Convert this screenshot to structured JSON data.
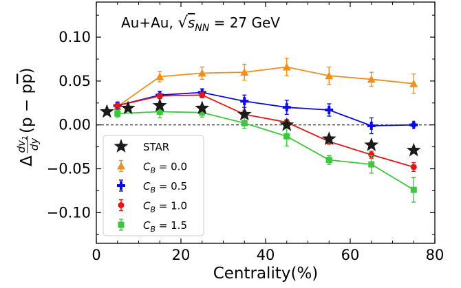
{
  "chart_data": {
    "type": "line",
    "annotation": "Au+Au, √s_NN = 27 GeV",
    "annotation_parts": {
      "prefix": "Au+Au, ",
      "sqrt": "√",
      "s": "s",
      "sub": "NN",
      "suffix": " = 27 GeV"
    },
    "xlabel": "Centrality(%)",
    "ylabel": "Δ(dv₁/dy)(p − p̄)",
    "ylabel_parts": {
      "delta": "Δ",
      "num": "dv",
      "num_sub": "1",
      "den": "dy",
      "rest": "(p − p",
      "pbar": "p",
      "close": ")"
    },
    "xlim": [
      0,
      80
    ],
    "ylim": [
      -0.135,
      0.14
    ],
    "xticks": [
      0,
      20,
      40,
      60,
      80
    ],
    "xtick_labels": [
      "0",
      "20",
      "40",
      "60",
      "80"
    ],
    "yticks": [
      -0.1,
      -0.05,
      0.0,
      0.05,
      0.1
    ],
    "ytick_labels": [
      "−0.10",
      "−0.05",
      "0.00",
      "0.05",
      "0.10"
    ],
    "reference_line_y": 0,
    "grid": false,
    "legend_position": "lower-left",
    "series": [
      {
        "name": "STAR",
        "label_parts": {
          "text": "STAR"
        },
        "marker": "star",
        "color": "#1a1a1a",
        "line": false,
        "x": [
          2.5,
          7.5,
          15,
          25,
          35,
          45,
          55,
          65,
          75
        ],
        "y": [
          0.015,
          0.019,
          0.022,
          0.019,
          0.012,
          0.0,
          -0.016,
          -0.023,
          -0.029
        ],
        "err": [
          0,
          0,
          0,
          0,
          0,
          0,
          0,
          0,
          0
        ]
      },
      {
        "name": "C_B = 0.0",
        "label_parts": {
          "sym": "C",
          "sub": "B",
          "eq": " = 0.0"
        },
        "marker": "triangle",
        "color": "#f0901a",
        "line": true,
        "x": [
          5,
          15,
          25,
          35,
          45,
          55,
          65,
          75
        ],
        "y": [
          0.021,
          0.055,
          0.059,
          0.06,
          0.066,
          0.056,
          0.052,
          0.047
        ],
        "err": [
          0.004,
          0.006,
          0.007,
          0.009,
          0.01,
          0.01,
          0.008,
          0.011
        ]
      },
      {
        "name": "C_B = 0.5",
        "label_parts": {
          "sym": "C",
          "sub": "B",
          "eq": " = 0.5"
        },
        "marker": "plus",
        "color": "#0a0ae6",
        "line": true,
        "x": [
          5,
          15,
          25,
          35,
          45,
          55,
          65,
          75
        ],
        "y": [
          0.022,
          0.034,
          0.037,
          0.027,
          0.02,
          0.017,
          -0.001,
          0.0
        ],
        "err": [
          0.004,
          0.004,
          0.004,
          0.007,
          0.008,
          0.007,
          0.009,
          0.002
        ]
      },
      {
        "name": "C_B = 1.0",
        "label_parts": {
          "sym": "C",
          "sub": "B",
          "eq": " = 1.0"
        },
        "marker": "circle",
        "color": "#e61414",
        "line": true,
        "x": [
          5,
          15,
          25,
          35,
          45,
          55,
          65,
          75
        ],
        "y": [
          0.022,
          0.033,
          0.034,
          0.012,
          0.003,
          -0.019,
          -0.034,
          -0.048
        ],
        "err": [
          0.003,
          0.003,
          0.003,
          0.004,
          0.003,
          0.003,
          0.004,
          0.005
        ]
      },
      {
        "name": "C_B = 1.5",
        "label_parts": {
          "sym": "C",
          "sub": "B",
          "eq": " = 1.5"
        },
        "marker": "square",
        "color": "#3cc83c",
        "line": true,
        "x": [
          5,
          15,
          25,
          35,
          45,
          55,
          65,
          75
        ],
        "y": [
          0.013,
          0.015,
          0.014,
          0.002,
          -0.013,
          -0.04,
          -0.045,
          -0.074
        ],
        "err": [
          0.004,
          0.007,
          0.005,
          0.006,
          0.011,
          0.005,
          0.01,
          0.014
        ]
      }
    ]
  }
}
